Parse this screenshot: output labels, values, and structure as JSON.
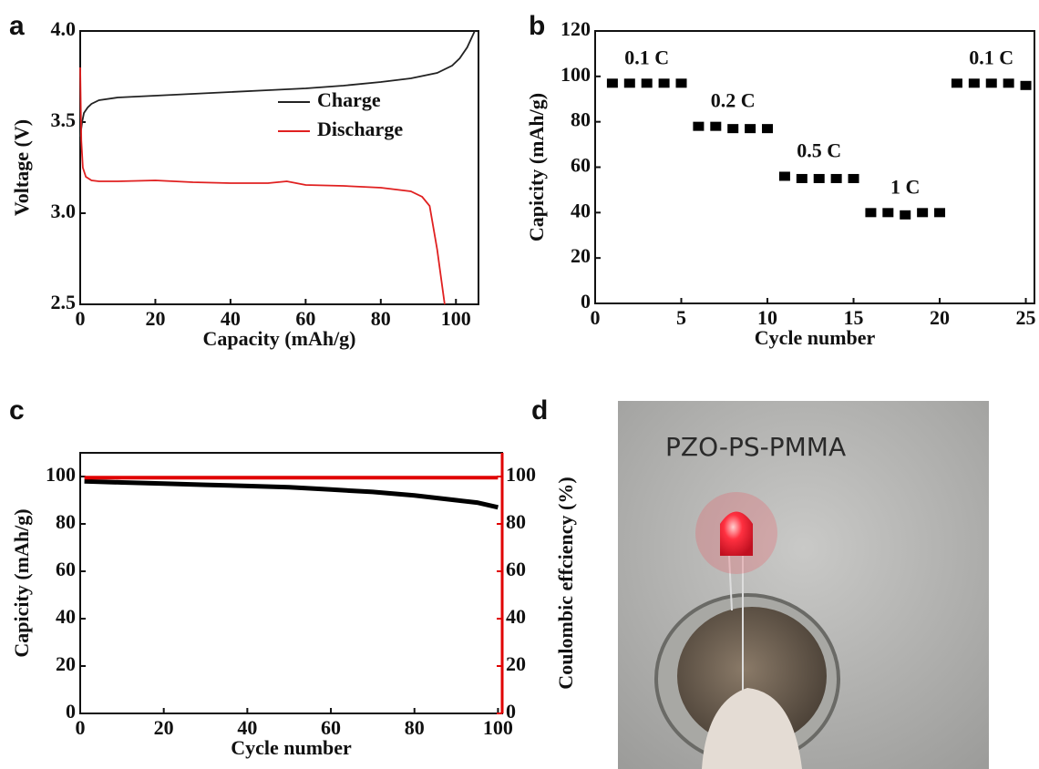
{
  "chart_data": [
    {
      "type": "line",
      "panel_label": "a",
      "xlabel": "Capacity (mAh/g)",
      "ylabel": "Voltage (V)",
      "xlim": [
        0,
        106
      ],
      "ylim": [
        2.5,
        4.0
      ],
      "xticks": [
        0,
        20,
        40,
        60,
        80,
        100
      ],
      "yticks": [
        2.5,
        {
          "value": 3,
          "label": "3.0"
        },
        3.5,
        {
          "value": 4,
          "label": "4.0"
        }
      ],
      "legend": "upper right",
      "series": [
        {
          "name": "Charge",
          "color": "#222222",
          "x": [
            0,
            0.5,
            1,
            2,
            3,
            5,
            10,
            20,
            30,
            40,
            50,
            60,
            70,
            80,
            88,
            95,
            99,
            101,
            103,
            105
          ],
          "values": [
            3.42,
            3.5,
            3.55,
            3.58,
            3.6,
            3.62,
            3.635,
            3.645,
            3.655,
            3.665,
            3.675,
            3.685,
            3.7,
            3.72,
            3.74,
            3.77,
            3.81,
            3.85,
            3.91,
            4.0
          ]
        },
        {
          "name": "Discharge",
          "color": "#e02020",
          "x": [
            0,
            0.3,
            0.7,
            1.5,
            3,
            5,
            10,
            20,
            30,
            40,
            50,
            55,
            60,
            70,
            80,
            88,
            91,
            93,
            95,
            97
          ],
          "values": [
            3.8,
            3.4,
            3.25,
            3.2,
            3.18,
            3.175,
            3.175,
            3.18,
            3.17,
            3.165,
            3.165,
            3.175,
            3.155,
            3.15,
            3.14,
            3.12,
            3.09,
            3.04,
            2.8,
            2.5
          ]
        }
      ]
    },
    {
      "type": "scatter",
      "panel_label": "b",
      "xlabel": "Cycle number",
      "ylabel": "Capicity (mAh/g)",
      "xlim": [
        0,
        25.5
      ],
      "ylim": [
        0,
        120
      ],
      "xticks": [
        0,
        5,
        10,
        15,
        20,
        25
      ],
      "yticks": [
        0,
        20,
        40,
        60,
        80,
        100,
        120
      ],
      "annotations": [
        "0.1 C",
        "0.2 C",
        "0.5 C",
        "1 C",
        "0.1 C"
      ],
      "x": [
        1,
        2,
        3,
        4,
        5,
        6,
        7,
        8,
        9,
        10,
        11,
        12,
        13,
        14,
        15,
        16,
        17,
        18,
        19,
        20,
        21,
        22,
        23,
        24,
        25
      ],
      "series": [
        {
          "color": "#000000",
          "values": [
            97,
            97,
            97,
            97,
            97,
            78,
            78,
            77,
            77,
            77,
            56,
            55,
            55,
            55,
            55,
            40,
            40,
            39,
            40,
            40,
            97,
            97,
            97,
            97,
            96
          ]
        }
      ]
    },
    {
      "type": "line",
      "panel_label": "c",
      "xlabel": "Cycle number",
      "ylabel": "Capicity (mAh/g)",
      "y2label": "Coulombic effciency (%)",
      "xlim": [
        0,
        101
      ],
      "ylim": [
        0,
        110
      ],
      "y2lim": [
        0,
        110
      ],
      "xticks": [
        0,
        20,
        40,
        60,
        80,
        100
      ],
      "yticks": [
        0,
        20,
        40,
        60,
        80,
        100
      ],
      "y2ticks": [
        0,
        20,
        40,
        60,
        80,
        100
      ],
      "y2color": "#e00000",
      "x": [
        1,
        10,
        20,
        30,
        40,
        50,
        60,
        70,
        80,
        90,
        95,
        100
      ],
      "series": [
        {
          "color": "#000000",
          "values": [
            98,
            97.5,
            97,
            96.5,
            96,
            95.5,
            94.5,
            93.5,
            92,
            90,
            89,
            87
          ]
        },
        {
          "color": "#e00000",
          "axis": "y2",
          "values": [
            99.5,
            99.5,
            99.5,
            99.5,
            99.5,
            99.5,
            99.5,
            99.5,
            99.5,
            99.5,
            99.5,
            99.5
          ]
        }
      ]
    }
  ],
  "photo": {
    "panel_label": "d",
    "caption": "PZO-PS-PMMA"
  }
}
